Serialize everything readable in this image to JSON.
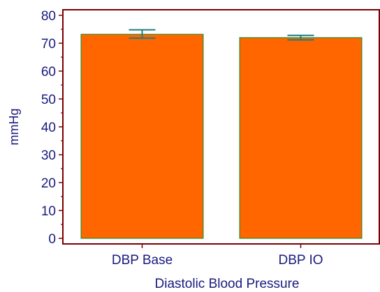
{
  "chart_data": {
    "type": "bar",
    "categories": [
      "DBP Base",
      "DBP IO"
    ],
    "values": [
      73.2,
      72.0
    ],
    "error_low": [
      71.8,
      71.2
    ],
    "error_high": [
      74.8,
      72.8
    ],
    "xlabel": "Diastolic Blood Pressure",
    "ylabel": "mmHg",
    "ylim": [
      -2,
      82
    ],
    "yticks": [
      0,
      10,
      20,
      30,
      40,
      50,
      60,
      70,
      80
    ],
    "grid": false,
    "colors": {
      "bar_fill": "#ff6600",
      "bar_edge": "#2e8b2e",
      "error_bar": "#1f7f7f",
      "axis": "#7a0000",
      "text": "#1a1a80"
    }
  }
}
